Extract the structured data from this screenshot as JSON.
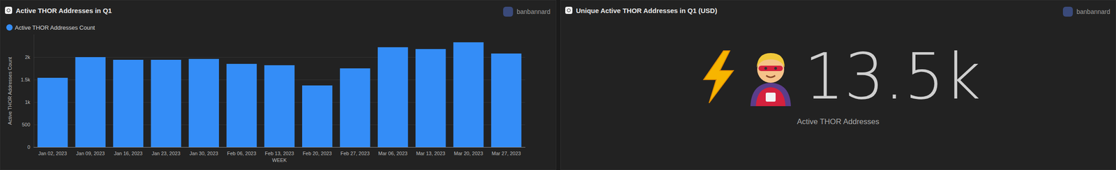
{
  "chart_data": {
    "type": "bar",
    "title": "Active THOR Addresses in Q1",
    "author": "banbannard",
    "series": [
      {
        "name": "Active THOR Addresses Count",
        "color": "#348df7",
        "values": [
          1540,
          2000,
          1940,
          1940,
          1960,
          1850,
          1820,
          1370,
          1750,
          2220,
          2180,
          2330,
          2080
        ]
      }
    ],
    "categories": [
      "Jan 02, 2023",
      "Jan 09, 2023",
      "Jan 16, 2023",
      "Jan 23, 2023",
      "Jan 30, 2023",
      "Feb 06, 2023",
      "Feb 13, 2023",
      "Feb 20, 2023",
      "Feb 27, 2023",
      "Mar 06, 2023",
      "Mar 13, 2023",
      "Mar 20, 2023",
      "Mar 27, 2023"
    ],
    "x_label": "WEEK",
    "y_label": "Active THOR Addresses Count",
    "ylim": [
      0,
      2500
    ],
    "yticks": [
      0,
      500,
      {
        "value": 1000,
        "label": "1k"
      },
      {
        "value": 1500,
        "label": "1.5k"
      },
      {
        "value": 2000,
        "label": "2k"
      }
    ],
    "grid": true,
    "legend": "top-left"
  },
  "counter": {
    "title": "Unique Active THOR Addresses in Q1 (USD)",
    "author": "banbannard",
    "value": "13.5k",
    "caption": "Active THOR Addresses"
  }
}
